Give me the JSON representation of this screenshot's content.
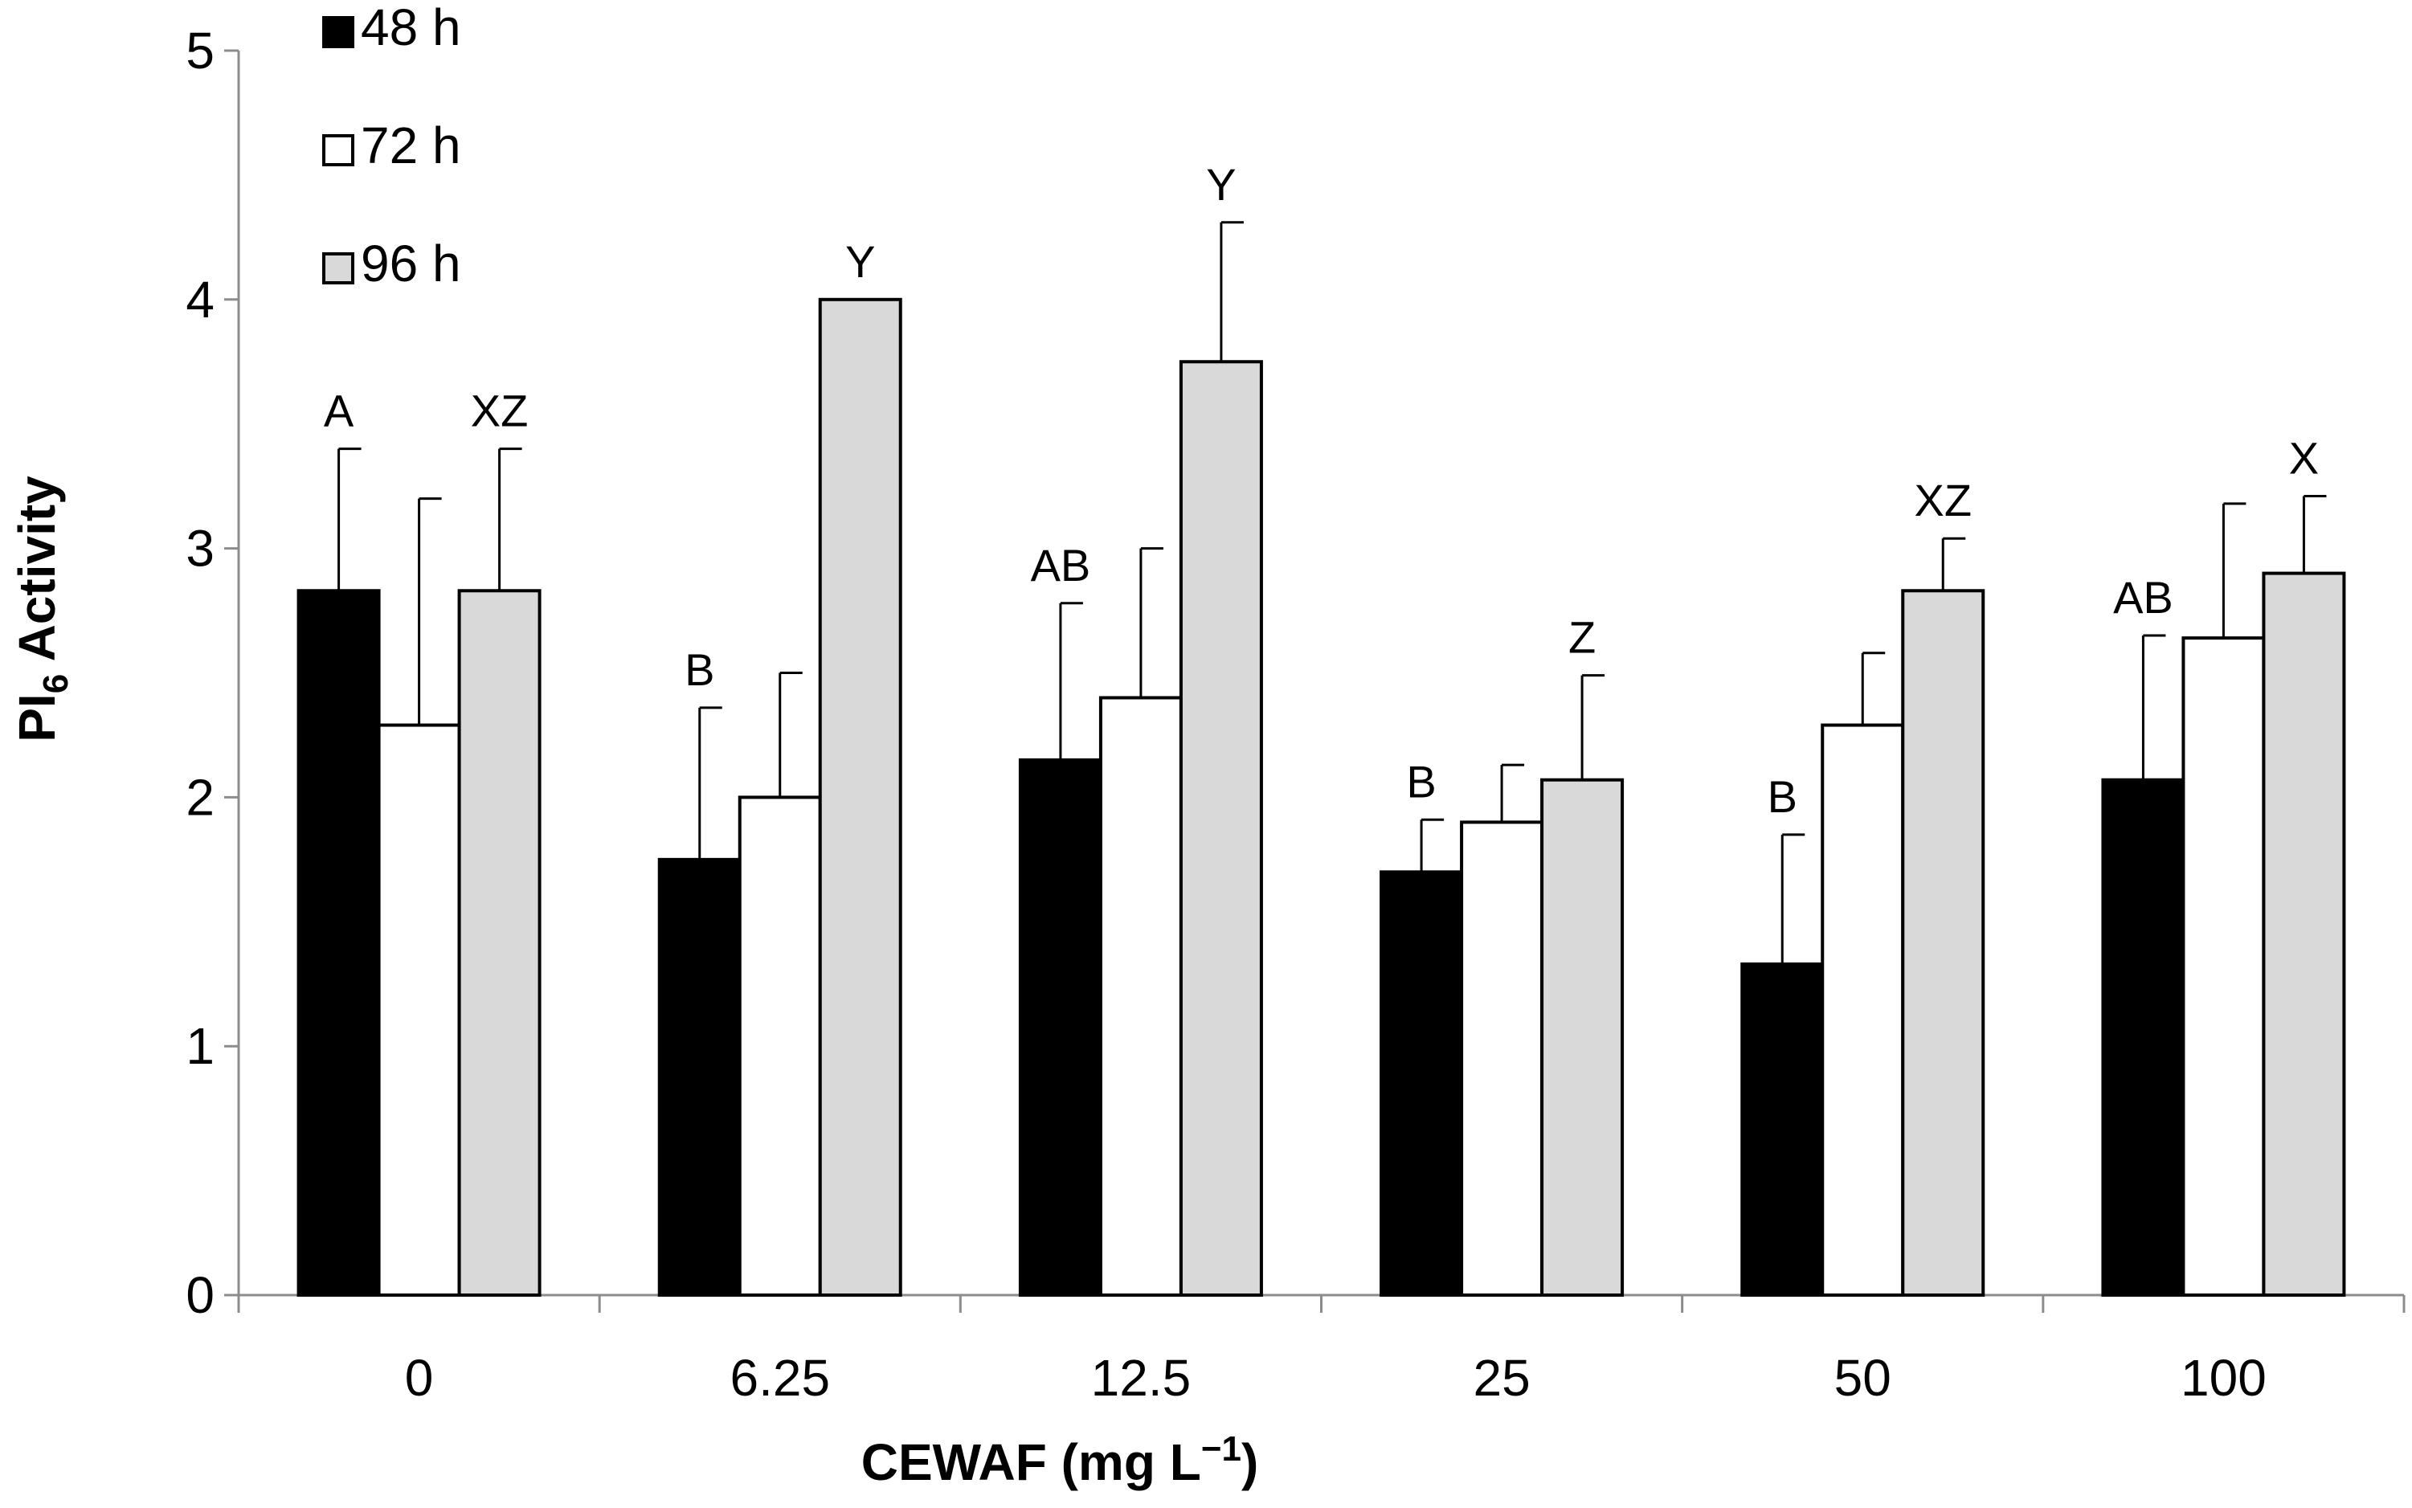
{
  "chart_data": {
    "type": "bar",
    "xlabel": {
      "prefix": "CEWAF (mg L",
      "superscript": "−1",
      "suffix": ")"
    },
    "ylabel": {
      "prefix": "PI",
      "subscript": "6",
      "suffix": " Activity"
    },
    "ylim": [
      0,
      5
    ],
    "yticks": [
      "0",
      "1",
      "2",
      "3",
      "4",
      "5"
    ],
    "categories": [
      "0",
      "6.25",
      "12.5",
      "25",
      "50",
      "100"
    ],
    "legend_position": "top-left",
    "series": [
      {
        "name": "48 h",
        "color": "#000000",
        "values": [
          2.83,
          1.75,
          2.15,
          1.7,
          1.33,
          2.07
        ],
        "errors": [
          0.57,
          0.61,
          0.63,
          0.21,
          0.52,
          0.58
        ],
        "labels": [
          "A",
          "B",
          "AB",
          "B",
          "B",
          "AB"
        ]
      },
      {
        "name": "72 h",
        "color": "#ffffff",
        "values": [
          2.29,
          2.0,
          2.4,
          1.9,
          2.29,
          2.64
        ],
        "errors": [
          0.91,
          0.5,
          0.6,
          0.23,
          0.29,
          0.54
        ],
        "labels": [
          "",
          "",
          "",
          "",
          "",
          ""
        ]
      },
      {
        "name": "96 h",
        "color": "#d9d9d9",
        "values": [
          2.83,
          4.0,
          3.75,
          2.07,
          2.83,
          2.9
        ],
        "errors": [
          0.57,
          0.0,
          0.56,
          0.42,
          0.21,
          0.31
        ],
        "labels": [
          "XZ",
          "Y",
          "Y",
          "Z",
          "XZ",
          "X"
        ]
      }
    ]
  }
}
